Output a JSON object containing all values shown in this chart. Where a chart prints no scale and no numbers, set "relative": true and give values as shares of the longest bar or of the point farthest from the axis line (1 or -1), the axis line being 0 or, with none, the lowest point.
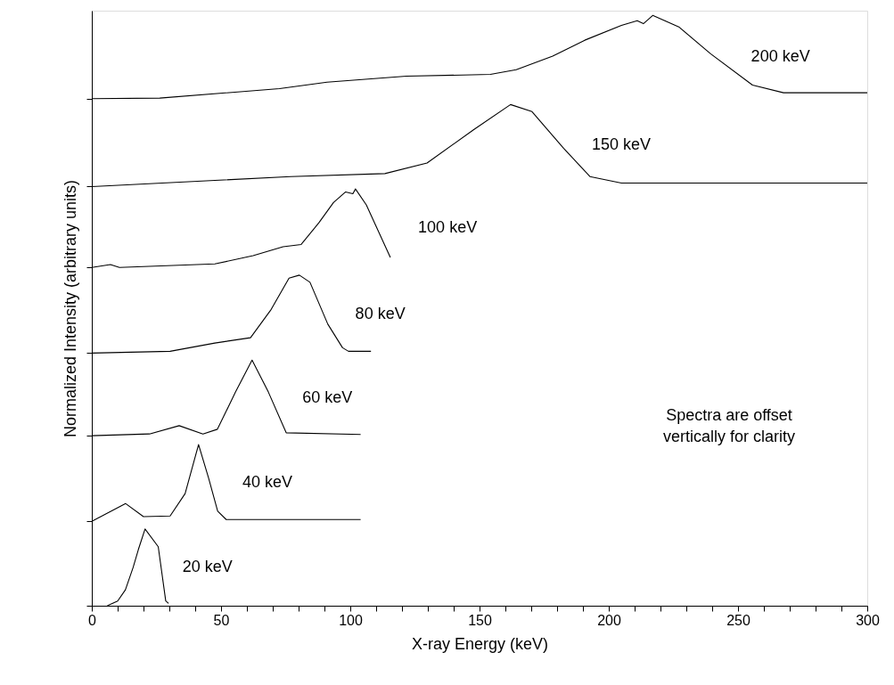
{
  "chart_data": {
    "type": "line",
    "relative": true,
    "xlabel": "X-ray Energy (keV)",
    "ylabel": "Normalized Intensity (arbitrary units)",
    "xlim": [
      0,
      300
    ],
    "xticks": [
      0,
      {
        "value": 10,
        "label": null
      },
      {
        "value": 20,
        "label": null
      },
      {
        "value": 30,
        "label": null
      },
      {
        "value": 40,
        "label": null
      },
      50,
      {
        "value": 60,
        "label": null
      },
      {
        "value": 70,
        "label": null
      },
      {
        "value": 80,
        "label": null
      },
      {
        "value": 90,
        "label": null
      },
      100,
      {
        "value": 110,
        "label": null
      },
      {
        "value": 120,
        "label": null
      },
      {
        "value": 130,
        "label": null
      },
      {
        "value": 140,
        "label": null
      },
      150,
      {
        "value": 160,
        "label": null
      },
      {
        "value": 170,
        "label": null
      },
      {
        "value": 180,
        "label": null
      },
      {
        "value": 190,
        "label": null
      },
      200,
      {
        "value": 210,
        "label": null
      },
      {
        "value": 220,
        "label": null
      },
      {
        "value": 230,
        "label": null
      },
      {
        "value": 240,
        "label": null
      },
      250,
      {
        "value": 260,
        "label": null
      },
      {
        "value": 270,
        "label": null
      },
      {
        "value": 280,
        "label": null
      },
      {
        "value": 290,
        "label": null
      },
      300
    ],
    "grid": false,
    "legend": false,
    "marker": "none",
    "line_style": "solid",
    "annotations": [
      "Spectra are offset\nvertically for clarity"
    ],
    "series": [
      {
        "name": "20 keV",
        "color": "#000000",
        "x": [
          6,
          10,
          13,
          16,
          18,
          20.6,
          25.7,
          28.6,
          29.7
        ],
        "values": [
          0,
          0.008,
          0.027,
          0.065,
          0.095,
          0.13,
          0.1,
          0.008,
          0.004
        ]
      },
      {
        "name": "40 keV",
        "color": "#000000",
        "x": [
          0,
          13.1,
          20,
          30.3,
          36.1,
          41.3,
          45.2,
          48.7,
          52,
          104
        ],
        "values": [
          0.143,
          0.173,
          0.151,
          0.152,
          0.19,
          0.273,
          0.216,
          0.16,
          0.146,
          0.146
        ]
      },
      {
        "name": "60 keV",
        "color": "#000000",
        "x": [
          0,
          22.3,
          33.8,
          43,
          48.6,
          55.6,
          62,
          68.3,
          75.2,
          104
        ],
        "values": [
          0.288,
          0.291,
          0.305,
          0.291,
          0.299,
          0.362,
          0.416,
          0.362,
          0.293,
          0.29
        ]
      },
      {
        "name": "80 keV",
        "color": "#000000",
        "x": [
          0,
          30.3,
          47.6,
          61.4,
          69.4,
          76.3,
          80.3,
          84.4,
          91.3,
          97,
          99.3,
          108
        ],
        "values": [
          0.428,
          0.431,
          0.445,
          0.454,
          0.502,
          0.555,
          0.56,
          0.548,
          0.477,
          0.437,
          0.431,
          0.431
        ]
      },
      {
        "name": "100 keV",
        "color": "#000000",
        "x": [
          0,
          7.2,
          10.7,
          47.6,
          62.4,
          74,
          81,
          87.9,
          93.5,
          98.2,
          101,
          102,
          106.2,
          115.5
        ],
        "values": [
          0.573,
          0.578,
          0.573,
          0.579,
          0.593,
          0.608,
          0.612,
          0.649,
          0.683,
          0.701,
          0.698,
          0.706,
          0.679,
          0.59
        ]
      },
      {
        "name": "150 keV",
        "color": "#000000",
        "x": [
          0,
          76.9,
          113.4,
          129.7,
          147.9,
          162,
          170.3,
          182.5,
          192.7,
          204.9,
          300
        ],
        "values": [
          0.71,
          0.727,
          0.732,
          0.75,
          0.807,
          0.849,
          0.837,
          0.775,
          0.727,
          0.716,
          0.716
        ]
      },
      {
        "name": "200 keV",
        "color": "#000000",
        "x": [
          0,
          26.3,
          72.6,
          91,
          121.7,
          154.2,
          164.2,
          178.3,
          190.7,
          204.9,
          211,
          213.4,
          217,
          227.3,
          239.4,
          255.6,
          267.6,
          300
        ],
        "values": [
          0.859,
          0.86,
          0.876,
          0.887,
          0.897,
          0.9,
          0.908,
          0.931,
          0.958,
          0.983,
          0.991,
          0.986,
          1.0,
          0.98,
          0.935,
          0.882,
          0.869,
          0.869
        ]
      }
    ]
  }
}
